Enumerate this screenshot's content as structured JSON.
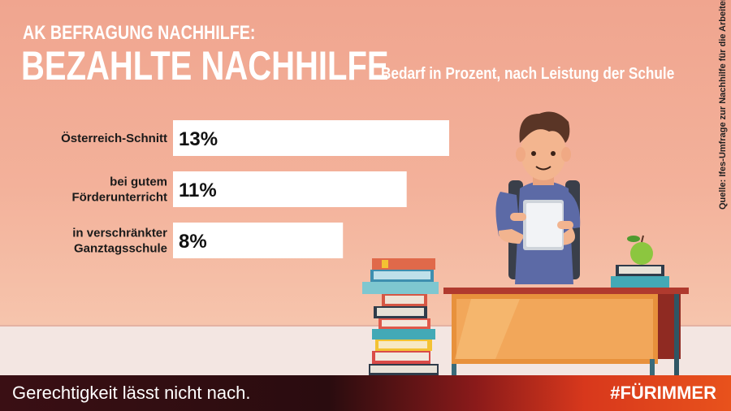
{
  "header": {
    "kicker": "AK BEFRAGUNG NACHHILFE:",
    "title": "BEZAHLTE NACHHILFE",
    "subtitle": "Bedarf in Prozent, nach Leistung der Schule"
  },
  "source": "Quelle: Ifes-Umfrage zur Nachhilfe für die Arbeiterkammer",
  "chart_data": {
    "type": "bar",
    "orientation": "horizontal",
    "title": "BEZAHLTE NACHHILFE",
    "subtitle": "Bedarf in Prozent, nach Leistung der Schule",
    "categories": [
      [
        "Österreich-Schnitt"
      ],
      [
        "bei gutem",
        "Förderunterricht"
      ],
      [
        "in verschränkter",
        "Ganztagsschule"
      ]
    ],
    "values": [
      13,
      11,
      8
    ],
    "value_labels": [
      "13%",
      "11%",
      "8%"
    ],
    "unit": "%",
    "xlim": [
      0,
      13
    ],
    "bar_color": "#ffffff",
    "grid": false,
    "legend": "none"
  },
  "footer": {
    "slogan": "Gerechtigkeit lässt nicht nach.",
    "hashtag": "#FÜRIMMER"
  },
  "colors": {
    "background_top": "#f0a58f",
    "background_bottom": "#f6cfb8",
    "bar": "#ffffff",
    "footer_dark": "#2a0c0f",
    "footer_accent": "#e8521c"
  },
  "illustration": {
    "subject": "student-with-books-at-desk",
    "icons": [
      "student-icon",
      "book-stack-icon",
      "desk-icon",
      "apple-icon"
    ]
  }
}
